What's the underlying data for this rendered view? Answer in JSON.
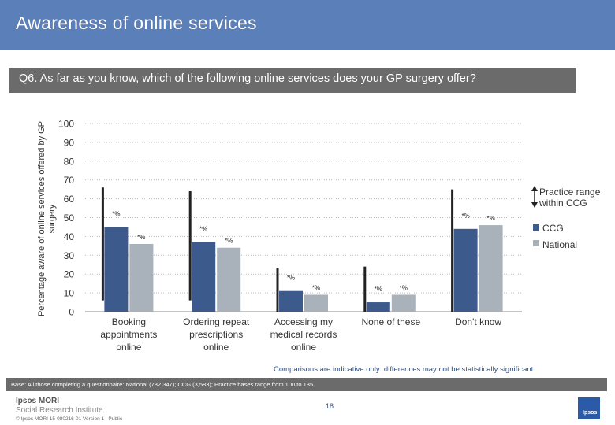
{
  "header": {
    "title": "Awareness of online services"
  },
  "question": "Q6. As far as you know, which of the following online services does your GP surgery offer?",
  "colors": {
    "ccg": "#3d5a8c",
    "national": "#a9b1bb",
    "range": "#222222",
    "header": "#5b7fb8",
    "question_bar": "#6b6b6b"
  },
  "chart_data": {
    "type": "bar",
    "ylabel": "Percentage aware of online services offered by GP surgery",
    "ylim": [
      0,
      100
    ],
    "yticks": [
      "0",
      "10",
      "20",
      "30",
      "40",
      "50",
      "60",
      "70",
      "80",
      "90",
      "100"
    ],
    "categories": [
      "Booking appointments online",
      "Ordering repeat prescriptions online",
      "Accessing my medical records online",
      "None of these",
      "Don't know"
    ],
    "category_lines": [
      [
        "Booking",
        "appointments",
        "online"
      ],
      [
        "Ordering repeat",
        "prescriptions",
        "online"
      ],
      [
        "Accessing my",
        "medical records",
        "online"
      ],
      [
        "None of these"
      ],
      [
        "Don't know"
      ]
    ],
    "series": [
      {
        "name": "CCG",
        "values": [
          45,
          37,
          11,
          5,
          44
        ],
        "labels": [
          "*%",
          "*%",
          "*%",
          "*%",
          "*%"
        ]
      },
      {
        "name": "National",
        "values": [
          36,
          34,
          9,
          9,
          46
        ],
        "labels": [
          "*%",
          "*%",
          "*%",
          "*%",
          "*%"
        ]
      }
    ],
    "practice_range": {
      "name": "Practice range within CCG",
      "min": [
        6,
        6,
        0,
        0,
        0
      ],
      "max": [
        66,
        64,
        23,
        24,
        65
      ]
    }
  },
  "legend": {
    "range": "Practice range within CCG",
    "ccg": "CCG",
    "national": "National"
  },
  "footnote": "Comparisons are indicative only: differences may not be statistically significant",
  "base_text": "Base: All those completing a questionnaire: National (782,347); CCG (3,583); Practice bases range from 100 to 135",
  "page_number": "18",
  "logo": {
    "line1": "Ipsos MORI",
    "line2": "Social Research Institute"
  },
  "copyright": "© Ipsos MORI    15-080216-01 Version 1 | Public",
  "corner_logo": "Ipsos"
}
